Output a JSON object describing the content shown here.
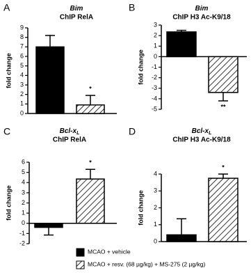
{
  "chart_data": [
    {
      "type": "bar",
      "panel": "A",
      "gene": {
        "base": "Bim"
      },
      "title": "ChIP RelA",
      "ylabel": "fold change",
      "categories": [
        null,
        null
      ],
      "values": [
        7.0,
        0.9
      ],
      "errors": [
        1.2,
        1.0
      ],
      "significance": [
        null,
        "*"
      ],
      "fills": [
        "solid",
        "hatch"
      ],
      "ylim": [
        0,
        9
      ],
      "yticks": [
        0,
        1,
        2,
        3,
        4,
        5,
        6,
        7,
        8,
        9
      ]
    },
    {
      "type": "bar",
      "panel": "B",
      "gene": {
        "base": "Bim"
      },
      "title": "ChIP H3 Ac-K9/18",
      "ylabel": "fold change",
      "categories": [
        null,
        null
      ],
      "values": [
        2.35,
        -3.4
      ],
      "errors": [
        0.15,
        0.8
      ],
      "significance": [
        null,
        "**"
      ],
      "fills": [
        "solid",
        "hatch"
      ],
      "ylim": [
        -5,
        3
      ],
      "yticks": [
        -5,
        -4,
        -3,
        -2,
        -1,
        0,
        1,
        2,
        3
      ]
    },
    {
      "type": "bar",
      "panel": "C",
      "gene": {
        "base": "Bcl-x",
        "subscript": "L"
      },
      "title": "ChIP RelA",
      "ylabel": "fold change",
      "categories": [
        null,
        null
      ],
      "values": [
        -0.4,
        4.35
      ],
      "errors": [
        0.75,
        0.95
      ],
      "significance": [
        null,
        "*"
      ],
      "fills": [
        "solid",
        "hatch"
      ],
      "ylim": [
        -2,
        6
      ],
      "yticks": [
        -2,
        -1,
        0,
        1,
        2,
        3,
        4,
        5,
        6
      ]
    },
    {
      "type": "bar",
      "panel": "D",
      "gene": {
        "base": "Bcl-x",
        "subscript": "L"
      },
      "title": "ChIP H3 Ac-K9/18",
      "ylabel": "fold change",
      "categories": [
        null,
        null
      ],
      "values": [
        0.4,
        3.75
      ],
      "errors": [
        0.95,
        0.25
      ],
      "significance": [
        null,
        "*"
      ],
      "fills": [
        "solid",
        "hatch"
      ],
      "ylim": [
        0,
        4
      ],
      "yticks": [
        0,
        1,
        2,
        3,
        4
      ]
    }
  ],
  "legend": [
    {
      "label": "MCAO + vehicle",
      "fill": "solid"
    },
    {
      "label": "MCAO + resv. (68 µg/kg) + MS-275 (2 µg/kg)",
      "fill": "hatch"
    }
  ]
}
